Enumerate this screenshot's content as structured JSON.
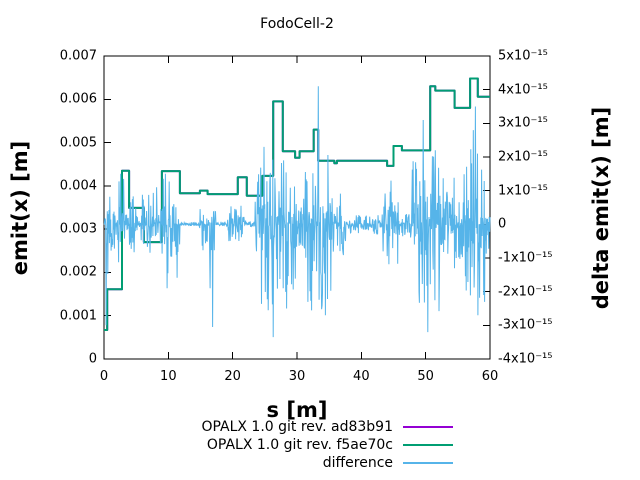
{
  "chart_data": {
    "type": "line",
    "title": "FodoCell-2",
    "xlabel": "s [m]",
    "ylabel_left": "emit(x) [m]",
    "ylabel_right": "delta emit(x) [m]",
    "x_range": [
      0,
      60
    ],
    "x_ticks": [
      0,
      10,
      20,
      30,
      40,
      50,
      60
    ],
    "x_tick_labels": [
      "0",
      "10",
      "20",
      "30",
      "40",
      "50",
      "60"
    ],
    "y_left_range": [
      0,
      0.007
    ],
    "y_left_ticks": [
      0,
      0.001,
      0.002,
      0.003,
      0.004,
      0.005,
      0.006,
      0.007
    ],
    "y_left_tick_labels": [
      "0",
      "0.001",
      "0.002",
      "0.003",
      "0.004",
      "0.005",
      "0.006",
      "0.007"
    ],
    "y_right_range_e15": [
      -4,
      5
    ],
    "y_right_ticks_e15": [
      5,
      4,
      3,
      2,
      1,
      0,
      -1,
      -2,
      -3,
      -4
    ],
    "y_right_tick_labels": [
      "5x10⁻¹⁵",
      "4x10⁻¹⁵",
      "3x10⁻¹⁵",
      "2x10⁻¹⁵",
      "1x10⁻¹⁵",
      "0",
      "-1x10⁻¹⁵",
      "-2x10⁻¹⁵",
      "-3x10⁻¹⁵",
      "-4x10⁻¹⁵"
    ],
    "grid": false,
    "layout": {
      "background": "#ffffff",
      "frame_color": "#000000",
      "legend_position": "below-plot-right"
    },
    "legend_entries": [
      {
        "label": "OPALX 1.0 git rev. ad83b91",
        "color": "#9400D3"
      },
      {
        "label": "OPALX 1.0 git rev. f5ae70c",
        "color": "#009E73"
      },
      {
        "label": "difference",
        "color": "#56B4E9"
      }
    ],
    "series": [
      {
        "name": "OPALX 1.0 git rev. ad83b91",
        "color": "#9400D3",
        "axis": "left",
        "style": "steps",
        "same_points_as": 1,
        "note": "exactly overplotted by the f5ae70c curve, not separately visible"
      },
      {
        "name": "OPALX 1.0 git rev. f5ae70c",
        "color": "#009E73",
        "axis": "left",
        "style": "steps",
        "steps": [
          [
            0.0,
            0.00067
          ],
          [
            0.5,
            0.00161
          ],
          [
            2.8,
            0.00435
          ],
          [
            3.9,
            0.00349
          ],
          [
            6.2,
            0.0027
          ],
          [
            9.0,
            0.00434
          ],
          [
            11.8,
            0.00383
          ],
          [
            14.9,
            0.00389
          ],
          [
            16.1,
            0.00381
          ],
          [
            20.8,
            0.0042
          ],
          [
            22.2,
            0.00377
          ],
          [
            24.6,
            0.00423
          ],
          [
            26.3,
            0.00595
          ],
          [
            27.8,
            0.0048
          ],
          [
            29.7,
            0.00465
          ],
          [
            30.4,
            0.0048
          ],
          [
            32.6,
            0.0053
          ],
          [
            33.3,
            0.00458
          ],
          [
            35.8,
            0.00452
          ],
          [
            36.2,
            0.00458
          ],
          [
            44.0,
            0.00446
          ],
          [
            45.0,
            0.00492
          ],
          [
            46.3,
            0.00482
          ],
          [
            50.7,
            0.0063
          ],
          [
            51.5,
            0.0062
          ],
          [
            54.5,
            0.0058
          ],
          [
            56.9,
            0.00648
          ],
          [
            58.1,
            0.00606
          ],
          [
            60.0,
            0.00606
          ]
        ]
      },
      {
        "name": "difference",
        "color": "#56B4E9",
        "axis": "right",
        "style": "noise-line",
        "center_e15": 0,
        "envelope_e15": [
          [
            0.0,
            0.6,
            0.5,
            3.1
          ],
          [
            0.6,
            2.0,
            0.9,
            0.9
          ],
          [
            2.0,
            3.4,
            1.5,
            1.3
          ],
          [
            3.4,
            5.0,
            1.0,
            0.9
          ],
          [
            5.0,
            5.6,
            0.35,
            0.35
          ],
          [
            5.6,
            9.2,
            0.95,
            0.95
          ],
          [
            9.2,
            11.8,
            1.4,
            1.6
          ],
          [
            11.8,
            14.8,
            0.06,
            0.06
          ],
          [
            14.8,
            17.4,
            0.6,
            1.1
          ],
          [
            17.4,
            19.2,
            0.06,
            0.06
          ],
          [
            19.2,
            21.8,
            0.55,
            0.55
          ],
          [
            21.8,
            23.5,
            0.1,
            0.1
          ],
          [
            23.5,
            27.1,
            2.2,
            2.6
          ],
          [
            27.1,
            29.8,
            1.9,
            2.1
          ],
          [
            29.8,
            31.2,
            0.8,
            0.8
          ],
          [
            31.2,
            35.6,
            2.1,
            2.6
          ],
          [
            35.6,
            37.6,
            1.0,
            1.0
          ],
          [
            37.6,
            43.2,
            0.3,
            0.3
          ],
          [
            43.2,
            45.9,
            1.2,
            1.3
          ],
          [
            45.9,
            47.6,
            0.35,
            0.35
          ],
          [
            47.6,
            52.6,
            2.6,
            3.0
          ],
          [
            52.6,
            55.6,
            1.4,
            1.5
          ],
          [
            55.6,
            59.2,
            2.3,
            2.6
          ],
          [
            59.2,
            60.0,
            1.0,
            0.9
          ]
        ],
        "spikes_e15": [
          [
            0.35,
            -3.0
          ],
          [
            2.6,
            1.5
          ],
          [
            3.05,
            1.35
          ],
          [
            8.2,
            1.1
          ],
          [
            9.55,
            1.5
          ],
          [
            9.8,
            -1.9
          ],
          [
            16.5,
            -1.9
          ],
          [
            16.9,
            -3.05
          ],
          [
            24.9,
            2.3
          ],
          [
            26.3,
            -3.35
          ],
          [
            27.9,
            1.9
          ],
          [
            28.4,
            -2.5
          ],
          [
            33.3,
            4.1
          ],
          [
            34.4,
            -2.7
          ],
          [
            44.6,
            1.3
          ],
          [
            49.6,
            3.1
          ],
          [
            50.3,
            -3.2
          ],
          [
            51.5,
            2.2
          ],
          [
            57.4,
            2.8
          ],
          [
            57.7,
            3.5
          ],
          [
            58.1,
            -2.7
          ]
        ]
      }
    ]
  }
}
